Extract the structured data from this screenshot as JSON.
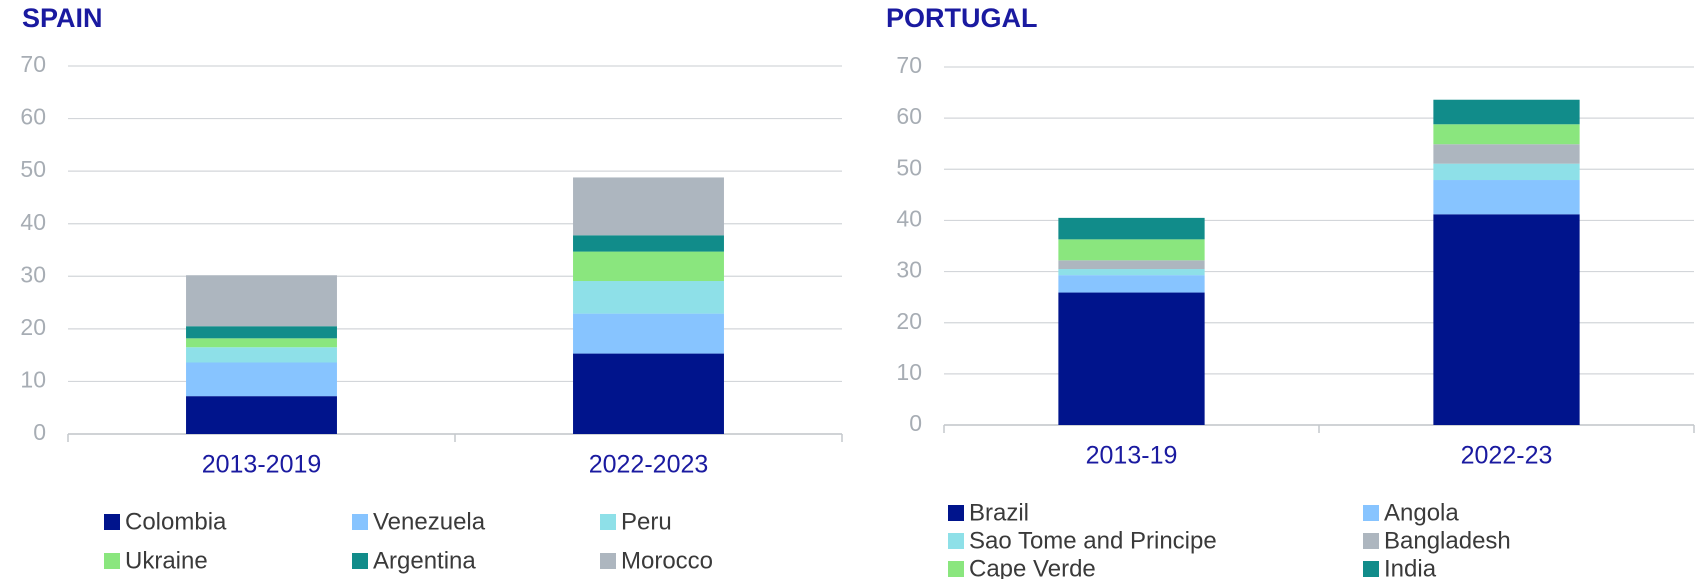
{
  "chart_data": [
    {
      "type": "stacked_bar",
      "title": "SPAIN",
      "categories": [
        "2013-2019",
        "2022-2023"
      ],
      "series": [
        {
          "name": "Colombia",
          "color": "#00148c",
          "values": [
            7.2,
            15.3
          ]
        },
        {
          "name": "Venezuela",
          "color": "#87c4ff",
          "values": [
            6.4,
            7.6
          ]
        },
        {
          "name": "Peru",
          "color": "#8ee0e8",
          "values": [
            2.9,
            6.2
          ]
        },
        {
          "name": "Ukraine",
          "color": "#8ae67e",
          "values": [
            1.7,
            5.6
          ]
        },
        {
          "name": "Argentina",
          "color": "#118c8a",
          "values": [
            2.3,
            3.1
          ]
        },
        {
          "name": "Morocco",
          "color": "#adb6bf",
          "values": [
            9.7,
            11.0
          ]
        }
      ],
      "ylim": [
        0,
        70
      ],
      "yticks": [
        0,
        10,
        20,
        30,
        40,
        50,
        60,
        70
      ],
      "grid": true,
      "legend": "bottom"
    },
    {
      "type": "stacked_bar",
      "title": "PORTUGAL",
      "categories": [
        "2013-19",
        "2022-23"
      ],
      "series": [
        {
          "name": "Brazil",
          "color": "#00148c",
          "values": [
            25.9,
            41.2
          ]
        },
        {
          "name": "Angola",
          "color": "#87c4ff",
          "values": [
            3.4,
            6.7
          ]
        },
        {
          "name": "Sao Tome and Principe",
          "color": "#8ee0e8",
          "values": [
            1.2,
            3.2
          ]
        },
        {
          "name": "Bangladesh",
          "color": "#adb6bf",
          "values": [
            1.7,
            3.8
          ]
        },
        {
          "name": "Cape Verde",
          "color": "#8ae67e",
          "values": [
            4.1,
            3.9
          ]
        },
        {
          "name": "India",
          "color": "#118c8a",
          "values": [
            4.2,
            4.8
          ]
        }
      ],
      "ylim": [
        0,
        70
      ],
      "yticks": [
        0,
        10,
        20,
        30,
        40,
        50,
        60,
        70
      ],
      "grid": true,
      "legend": "bottom"
    }
  ]
}
